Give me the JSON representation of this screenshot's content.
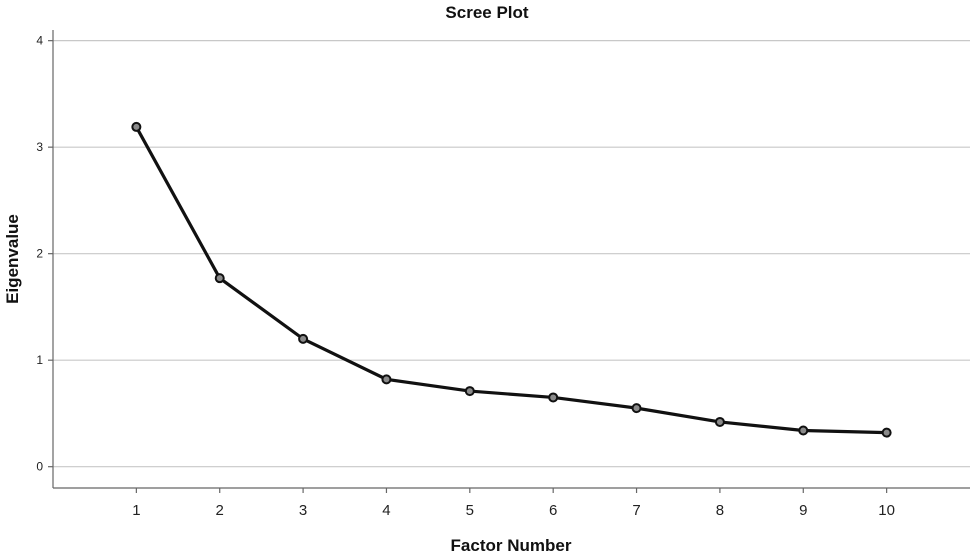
{
  "chart_data": {
    "type": "line",
    "title": "Scree Plot",
    "xlabel": "Factor Number",
    "ylabel": "Eigenvalue",
    "x": [
      1,
      2,
      3,
      4,
      5,
      6,
      7,
      8,
      9,
      10
    ],
    "series": [
      {
        "values": [
          3.19,
          1.77,
          1.2,
          0.82,
          0.71,
          0.65,
          0.55,
          0.42,
          0.34,
          0.32
        ]
      }
    ],
    "xlim": [
      0,
      11
    ],
    "ylim": [
      -0.2,
      4.1
    ],
    "yticks": [
      0,
      1,
      2,
      3,
      4
    ],
    "xticks": [
      1,
      2,
      3,
      4,
      5,
      6,
      7,
      8,
      9,
      10
    ],
    "grid": true,
    "legend": "none",
    "colors": {
      "line": "#111111",
      "marker_fill": "#8a8a8a",
      "grid": "#c8c8c8"
    }
  }
}
